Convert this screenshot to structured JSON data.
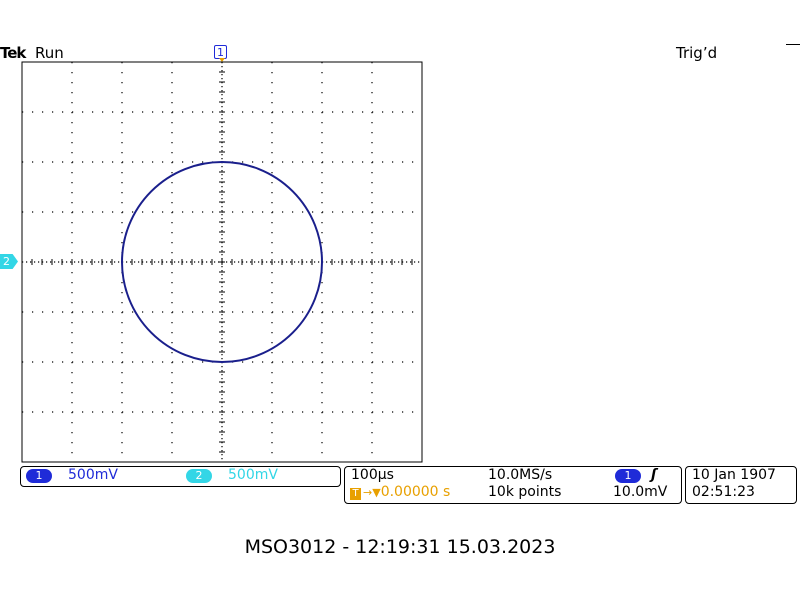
{
  "header": {
    "brand": "Tek",
    "run_state": "Run",
    "trigger_state": "Trig’d"
  },
  "markers": {
    "ch1": "1",
    "ch2": "2"
  },
  "screen": {
    "grid_divisions_x": 8,
    "grid_divisions_y": 8,
    "trace_type": "circle",
    "trace_color": "#1a1f8c",
    "grid_color": "#000000"
  },
  "channels": [
    {
      "num": "1",
      "scale": "500mV",
      "color": "#1f2bd8"
    },
    {
      "num": "2",
      "scale": "500mV",
      "color": "#33d6e6"
    }
  ],
  "timebase": {
    "scale": "100µs",
    "sample_rate": "10.0MS/s",
    "trigger_position": "0.00000 s",
    "trigger_position_icon": "T→▼",
    "record_length": "10k points"
  },
  "trigger": {
    "source": "1",
    "slope_icon": "rising-edge-icon",
    "slope_glyph": "ʃ",
    "level": "10.0mV"
  },
  "datetime": {
    "date": "10 Jan  1907",
    "time": "02:51:23"
  },
  "caption": "MSO3012 - 12:19:31   15.03.2023"
}
